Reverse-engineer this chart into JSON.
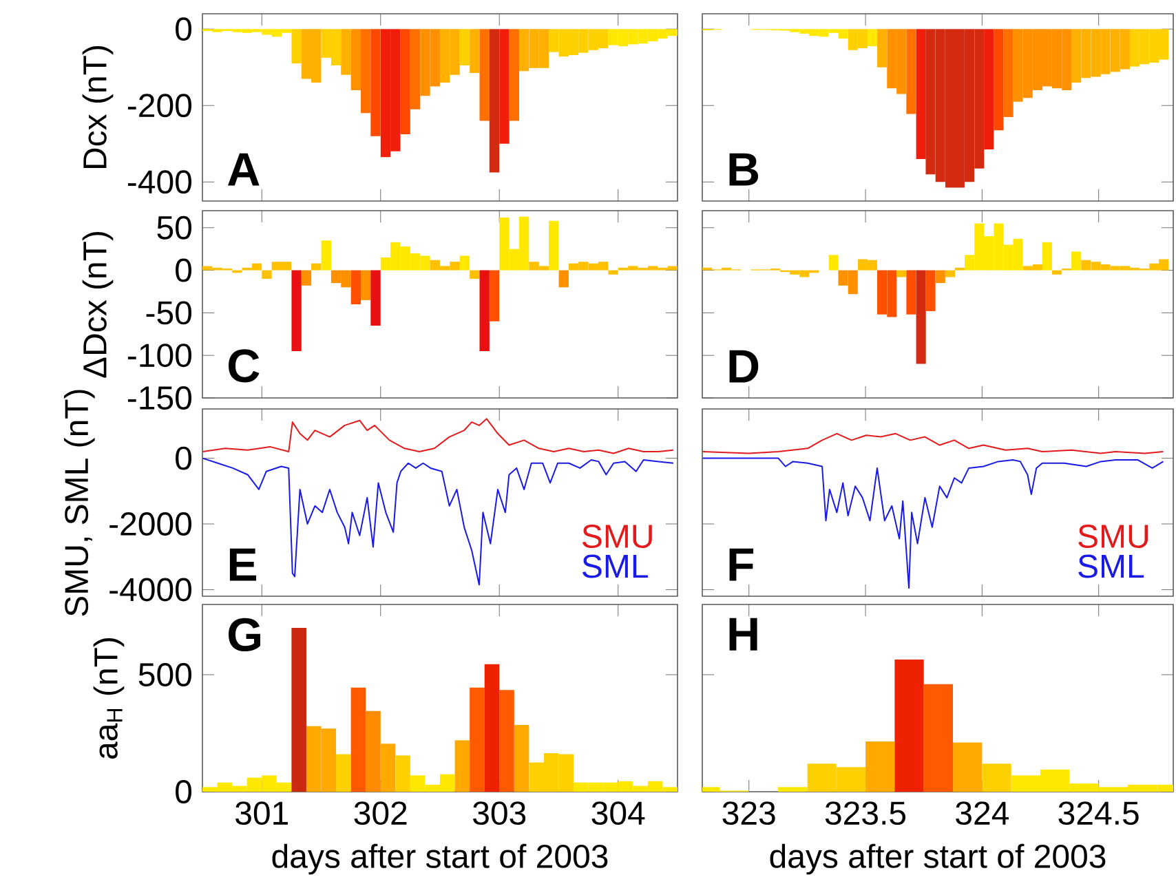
{
  "chart_data": [
    {
      "type": "bar",
      "ylabel": "Dcx (nT)",
      "annotations": [
        "A"
      ],
      "xlim": [
        300.5,
        304.5
      ],
      "ylim": [
        -450,
        40
      ],
      "xticks": [
        301,
        302,
        303,
        304
      ],
      "yticks": [
        -400,
        -200,
        0
      ],
      "tick_labels": "y",
      "x": [
        300.542,
        300.625,
        300.708,
        300.792,
        300.875,
        300.958,
        301.042,
        301.125,
        301.208,
        301.292,
        301.375,
        301.458,
        301.542,
        301.625,
        301.708,
        301.792,
        301.875,
        301.958,
        302.042,
        302.125,
        302.208,
        302.292,
        302.375,
        302.458,
        302.542,
        302.625,
        302.708,
        302.792,
        302.875,
        302.958,
        303.042,
        303.125,
        303.208,
        303.292,
        303.375,
        303.458,
        303.542,
        303.625,
        303.708,
        303.792,
        303.875,
        303.958,
        304.042,
        304.125,
        304.208,
        304.292,
        304.375,
        304.458
      ],
      "values": [
        -5,
        -8,
        -5,
        -8,
        -10,
        -8,
        -15,
        -20,
        -10,
        -90,
        -130,
        -140,
        -75,
        -95,
        -120,
        -160,
        -220,
        -280,
        -335,
        -320,
        -275,
        -210,
        -175,
        -150,
        -140,
        -120,
        -95,
        -115,
        -240,
        -375,
        -300,
        -240,
        -110,
        -102,
        -102,
        -60,
        -72,
        -68,
        -62,
        -55,
        -50,
        -42,
        -45,
        -40,
        -38,
        -32,
        -25,
        -18
      ],
      "colors": [
        "#ffe800",
        "#ffe800",
        "#ffe800",
        "#ffe800",
        "#ffe800",
        "#ffe800",
        "#ffe800",
        "#ffe800",
        "#ffe800",
        "#ffd000",
        "#ffb000",
        "#ffb000",
        "#ffd000",
        "#ffd000",
        "#ffb000",
        "#ff9000",
        "#ff7000",
        "#ff4800",
        "#f01e0a",
        "#f01e0a",
        "#ff4800",
        "#ff7000",
        "#ff9000",
        "#ff9000",
        "#ffb000",
        "#ffb000",
        "#ffd000",
        "#ffb000",
        "#ff7000",
        "#d42a10",
        "#f01e0a",
        "#ff7000",
        "#ffb000",
        "#ffb000",
        "#ffb000",
        "#ffd000",
        "#ffd000",
        "#ffd000",
        "#ffd000",
        "#ffd000",
        "#ffd000",
        "#ffe800",
        "#ffe800",
        "#ffe800",
        "#ffe800",
        "#ffe800",
        "#ffe800",
        "#ffe800"
      ]
    },
    {
      "type": "bar",
      "annotations": [
        "B"
      ],
      "xlim": [
        322.8,
        324.82
      ],
      "ylim": [
        -450,
        40
      ],
      "xticks": [
        323,
        323.5,
        324,
        324.5
      ],
      "yticks": [
        -400,
        -200,
        0
      ],
      "tick_labels": false,
      "x": [
        322.821,
        322.863,
        322.904,
        322.946,
        322.988,
        323.029,
        323.071,
        323.113,
        323.154,
        323.196,
        323.238,
        323.279,
        323.321,
        323.363,
        323.404,
        323.446,
        323.488,
        323.529,
        323.571,
        323.613,
        323.654,
        323.696,
        323.738,
        323.779,
        323.821,
        323.863,
        323.904,
        323.946,
        323.988,
        324.029,
        324.071,
        324.113,
        324.154,
        324.196,
        324.238,
        324.279,
        324.321,
        324.363,
        324.404,
        324.446,
        324.488,
        324.529,
        324.571,
        324.613,
        324.654,
        324.696,
        324.738,
        324.779
      ],
      "values": [
        -3,
        -2,
        0,
        0,
        0,
        -2,
        -2,
        -3,
        -4,
        -8,
        -12,
        -18,
        -20,
        -10,
        -25,
        -55,
        -50,
        -45,
        -100,
        -155,
        -170,
        -222,
        -340,
        -380,
        -400,
        -415,
        -415,
        -400,
        -365,
        -315,
        -265,
        -230,
        -190,
        -180,
        -160,
        -150,
        -155,
        -160,
        -140,
        -128,
        -125,
        -118,
        -112,
        -105,
        -98,
        -92,
        -88,
        -80
      ],
      "colors": [
        "#ffe800",
        "#ffe800",
        "#ffe800",
        "#ffe800",
        "#ffe800",
        "#ffe800",
        "#ffe800",
        "#ffe800",
        "#ffe800",
        "#ffe800",
        "#ffe800",
        "#ffe800",
        "#ffe800",
        "#ffe800",
        "#ffe800",
        "#ffd000",
        "#ffd000",
        "#ffe800",
        "#ffb000",
        "#ff9000",
        "#ff9000",
        "#ff7000",
        "#f01e0a",
        "#d42a10",
        "#d42a10",
        "#d42a10",
        "#d42a10",
        "#d42a10",
        "#d42a10",
        "#f01e0a",
        "#ff4800",
        "#ff7000",
        "#ff9000",
        "#ff9000",
        "#ff9000",
        "#ff9000",
        "#ff9000",
        "#ff9000",
        "#ffb000",
        "#ffb000",
        "#ffb000",
        "#ffb000",
        "#ffb000",
        "#ffb000",
        "#ffd000",
        "#ffd000",
        "#ffd000",
        "#ffd000"
      ]
    },
    {
      "type": "bar",
      "ylabel": "ΔDcx (nT)",
      "annotations": [
        "C"
      ],
      "xlim": [
        300.5,
        304.5
      ],
      "ylim": [
        -150,
        70
      ],
      "xticks": [
        301,
        302,
        303,
        304
      ],
      "yticks": [
        -150,
        -100,
        -50,
        0,
        50
      ],
      "tick_labels": "y",
      "x": [
        300.542,
        300.625,
        300.708,
        300.792,
        300.875,
        300.958,
        301.042,
        301.125,
        301.208,
        301.292,
        301.375,
        301.458,
        301.542,
        301.625,
        301.708,
        301.792,
        301.875,
        301.958,
        302.042,
        302.125,
        302.208,
        302.292,
        302.375,
        302.458,
        302.542,
        302.625,
        302.708,
        302.792,
        302.875,
        302.958,
        303.042,
        303.125,
        303.208,
        303.292,
        303.375,
        303.458,
        303.542,
        303.625,
        303.708,
        303.792,
        303.875,
        303.958,
        304.042,
        304.125,
        304.208,
        304.292,
        304.375,
        304.458
      ],
      "values": [
        5,
        3,
        2,
        -3,
        3,
        8,
        -10,
        10,
        10,
        -95,
        -18,
        8,
        35,
        -15,
        -20,
        -40,
        -35,
        -65,
        15,
        33,
        28,
        20,
        17,
        12,
        5,
        10,
        17,
        -10,
        -95,
        -60,
        62,
        25,
        63,
        10,
        5,
        58,
        -20,
        8,
        10,
        8,
        10,
        -5,
        3,
        5,
        3,
        5,
        3,
        5
      ],
      "colors": [
        "#ffc000",
        "#ffc000",
        "#ffc000",
        "#ffc000",
        "#ffc000",
        "#ffc000",
        "#ffc000",
        "#ffc000",
        "#ffc000",
        "#e81010",
        "#ff9000",
        "#ffc000",
        "#ffe800",
        "#ff9000",
        "#ff9000",
        "#ff5000",
        "#ff9000",
        "#e81010",
        "#ffe800",
        "#ffe800",
        "#ffe800",
        "#ffe800",
        "#ffe800",
        "#ffc000",
        "#ffc000",
        "#ffc000",
        "#ffe800",
        "#ffc000",
        "#e81010",
        "#ff5000",
        "#ffe800",
        "#ffe800",
        "#ffe800",
        "#ffc000",
        "#ffc000",
        "#ffe800",
        "#ff9000",
        "#ffc000",
        "#ffc000",
        "#ffc000",
        "#ffc000",
        "#ffc000",
        "#ffc000",
        "#ffc000",
        "#ffc000",
        "#ffc000",
        "#ffc000",
        "#ffc000"
      ]
    },
    {
      "type": "bar",
      "annotations": [
        "D"
      ],
      "xlim": [
        322.8,
        324.82
      ],
      "ylim": [
        -150,
        70
      ],
      "xticks": [
        323,
        323.5,
        324,
        324.5
      ],
      "yticks": [
        -150,
        -100,
        -50,
        0,
        50
      ],
      "tick_labels": false,
      "x": [
        322.821,
        322.863,
        322.904,
        322.946,
        322.988,
        323.029,
        323.071,
        323.113,
        323.154,
        323.196,
        323.238,
        323.279,
        323.321,
        323.363,
        323.404,
        323.446,
        323.488,
        323.529,
        323.571,
        323.613,
        323.654,
        323.696,
        323.738,
        323.779,
        323.821,
        323.863,
        323.904,
        323.946,
        323.988,
        324.029,
        324.071,
        324.113,
        324.154,
        324.196,
        324.238,
        324.279,
        324.321,
        324.363,
        324.404,
        324.446,
        324.488,
        324.529,
        324.571,
        324.613,
        324.654,
        324.696,
        324.738,
        324.779
      ],
      "values": [
        3,
        1,
        3,
        1,
        0,
        1,
        1,
        2,
        -2,
        -5,
        -8,
        -3,
        0,
        18,
        -18,
        -28,
        13,
        12,
        -52,
        -55,
        -8,
        -52,
        -110,
        -48,
        -15,
        -8,
        3,
        18,
        55,
        40,
        55,
        30,
        37,
        5,
        7,
        33,
        -5,
        2,
        22,
        12,
        10,
        7,
        5,
        5,
        3,
        2,
        8,
        13
      ],
      "colors": [
        "#ffc000",
        "#ffc000",
        "#ffc000",
        "#ffc000",
        "#ffc000",
        "#ffc000",
        "#ffc000",
        "#ffc000",
        "#ffc000",
        "#ffc000",
        "#ffc000",
        "#ffc000",
        "#ffc000",
        "#ffe800",
        "#ff9000",
        "#ff9000",
        "#ffc000",
        "#ffc000",
        "#ff5000",
        "#ff5000",
        "#ffc000",
        "#ff5000",
        "#d42a10",
        "#ff5000",
        "#ff9000",
        "#ffc000",
        "#ffc000",
        "#ffe800",
        "#ffe800",
        "#ffe800",
        "#ffe800",
        "#ffe800",
        "#ffe800",
        "#ffc000",
        "#ffc000",
        "#ffe800",
        "#ffc000",
        "#ffc000",
        "#ffe800",
        "#ffc000",
        "#ffc000",
        "#ffc000",
        "#ffc000",
        "#ffc000",
        "#ffc000",
        "#ffc000",
        "#ffc000",
        "#ffc000"
      ]
    },
    {
      "type": "line",
      "ylabel": "SMU, SML (nT)",
      "annotations": [
        "E"
      ],
      "xlim": [
        300.5,
        304.5
      ],
      "ylim": [
        -4200,
        1500
      ],
      "xticks": [
        301,
        302,
        303,
        304
      ],
      "yticks": [
        -4000,
        -2000,
        0
      ],
      "tick_labels": "y",
      "legend": "bottom right",
      "series": [
        {
          "name": "SMU",
          "color": "#e31a1c",
          "x": [
            300.503,
            300.692,
            300.881,
            301.069,
            301.226,
            301.258,
            301.321,
            301.384,
            301.447,
            301.572,
            301.698,
            301.824,
            301.887,
            301.95,
            302.075,
            302.201,
            302.327,
            302.453,
            302.579,
            302.704,
            302.767,
            302.83,
            302.893,
            302.987,
            303.082,
            303.208,
            303.333,
            303.459,
            303.585,
            303.711,
            303.836,
            303.962,
            304.088,
            304.214,
            304.34,
            304.465
          ],
          "values": [
            200,
            300,
            250,
            350,
            200,
            1100,
            750,
            550,
            850,
            650,
            1000,
            1150,
            850,
            1000,
            550,
            300,
            200,
            300,
            650,
            850,
            1100,
            1000,
            1200,
            750,
            400,
            550,
            300,
            200,
            300,
            200,
            250,
            150,
            300,
            200,
            200,
            250
          ]
        },
        {
          "name": "SML",
          "color": "#1a1ae6",
          "x": [
            300.503,
            300.629,
            300.755,
            300.881,
            300.975,
            301.038,
            301.164,
            301.226,
            301.258,
            301.277,
            301.321,
            301.384,
            301.447,
            301.509,
            301.572,
            301.635,
            301.698,
            301.73,
            301.761,
            301.824,
            301.887,
            301.937,
            301.981,
            302.044,
            302.107,
            302.138,
            302.17,
            302.233,
            302.296,
            302.358,
            302.421,
            302.516,
            302.579,
            302.642,
            302.704,
            302.767,
            302.83,
            302.862,
            302.925,
            302.987,
            303.05,
            303.082,
            303.145,
            303.208,
            303.27,
            303.365,
            303.428,
            303.491,
            303.585,
            303.679,
            303.774,
            303.836,
            303.899,
            303.962,
            304.057,
            304.151,
            304.214,
            304.34,
            304.465
          ],
          "values": [
            0,
            -150,
            -300,
            -500,
            -950,
            -400,
            -250,
            -300,
            -3500,
            -3600,
            -950,
            -2000,
            -1450,
            -1650,
            -950,
            -1650,
            -2100,
            -2600,
            -1650,
            -2350,
            -1200,
            -2700,
            -750,
            -1650,
            -2250,
            -750,
            -400,
            -150,
            -300,
            -150,
            -300,
            -400,
            -1450,
            -950,
            -2100,
            -2800,
            -3850,
            -1650,
            -2600,
            -950,
            -1650,
            -500,
            -300,
            -950,
            -150,
            -150,
            -750,
            -150,
            -150,
            -300,
            -50,
            -100,
            -500,
            -150,
            -100,
            -400,
            -50,
            -100,
            -150
          ]
        }
      ]
    },
    {
      "type": "line",
      "annotations": [
        "F"
      ],
      "xlim": [
        322.8,
        324.82
      ],
      "ylim": [
        -4200,
        1500
      ],
      "xticks": [
        323,
        323.5,
        324,
        324.5
      ],
      "yticks": [
        -4000,
        -2000,
        0
      ],
      "tick_labels": false,
      "legend": "bottom right",
      "series": [
        {
          "name": "SMU",
          "color": "#e31a1c",
          "x": [
            322.802,
            323,
            323.126,
            323.252,
            323.314,
            323.377,
            323.44,
            323.503,
            323.566,
            323.629,
            323.692,
            323.755,
            323.818,
            323.881,
            323.943,
            324.006,
            324.101,
            324.195,
            324.258,
            324.384,
            324.509,
            324.572,
            324.698,
            324.777
          ],
          "values": [
            200,
            150,
            200,
            300,
            550,
            750,
            550,
            700,
            650,
            750,
            550,
            650,
            400,
            550,
            300,
            400,
            250,
            300,
            200,
            250,
            150,
            200,
            150,
            200
          ]
        },
        {
          "name": "SML",
          "color": "#1a1ae6",
          "x": [
            322.802,
            323,
            323.126,
            323.157,
            323.189,
            323.252,
            323.314,
            323.33,
            323.346,
            323.377,
            323.403,
            323.425,
            323.456,
            323.487,
            323.519,
            323.55,
            323.582,
            323.613,
            323.645,
            323.66,
            323.686,
            323.698,
            323.723,
            323.755,
            323.786,
            323.818,
            323.849,
            323.881,
            323.912,
            323.943,
            324.006,
            324.069,
            324.132,
            324.164,
            324.195,
            324.211,
            324.233,
            324.258,
            324.352,
            324.447,
            324.509,
            324.572,
            324.667,
            324.73,
            324.777
          ],
          "values": [
            0,
            0,
            0,
            -250,
            -100,
            -150,
            -250,
            -1900,
            -950,
            -1650,
            -750,
            -1750,
            -850,
            -1200,
            -1900,
            -300,
            -1900,
            -1450,
            -2450,
            -1300,
            -3950,
            -1650,
            -2600,
            -1200,
            -2100,
            -850,
            -1200,
            -600,
            -750,
            -300,
            -250,
            -100,
            -50,
            -100,
            -500,
            -1100,
            -300,
            -150,
            -150,
            -250,
            -100,
            -50,
            -50,
            -300,
            -100
          ]
        }
      ]
    },
    {
      "type": "bar",
      "ylabel": "aa$_{H}$ (nT)",
      "xlabel": "days after start of 2003",
      "annotations": [
        "G"
      ],
      "xlim": [
        300.5,
        304.5
      ],
      "ylim": [
        0,
        800
      ],
      "xticks": [
        301,
        302,
        303,
        304
      ],
      "yticks": [
        0,
        500
      ],
      "x": [
        300.5625,
        300.6875,
        300.8125,
        300.9375,
        301.0625,
        301.1875,
        301.3125,
        301.4375,
        301.5625,
        301.6875,
        301.8125,
        301.9375,
        302.0625,
        302.1875,
        302.3125,
        302.4375,
        302.5625,
        302.6875,
        302.8125,
        302.9375,
        303.0625,
        303.1875,
        303.3125,
        303.4375,
        303.5625,
        303.6875,
        303.8125,
        303.9375,
        304.0625,
        304.1875,
        304.3125,
        304.4375
      ],
      "values": [
        20,
        40,
        25,
        60,
        70,
        40,
        700,
        280,
        270,
        160,
        445,
        345,
        205,
        155,
        70,
        30,
        75,
        220,
        445,
        545,
        435,
        285,
        125,
        165,
        160,
        40,
        40,
        40,
        45,
        25,
        45,
        20
      ],
      "colors": [
        "#ffe800",
        "#ffe800",
        "#ffe800",
        "#ffe800",
        "#ffe800",
        "#ffe800",
        "#cc2a10",
        "#ffa800",
        "#ffa800",
        "#ffd000",
        "#ff5a00",
        "#ff8c00",
        "#ffa800",
        "#ffd000",
        "#ffe800",
        "#ffe800",
        "#ffe800",
        "#ffa800",
        "#ff5a00",
        "#ee2200",
        "#ff5a00",
        "#ffa800",
        "#ffd000",
        "#ffd000",
        "#ffd000",
        "#ffe800",
        "#ffe800",
        "#ffe800",
        "#ffe800",
        "#ffe800",
        "#ffe800",
        "#ffe800"
      ]
    },
    {
      "type": "bar",
      "xlabel": "days after start of 2003",
      "annotations": [
        "H"
      ],
      "xlim": [
        322.8,
        324.82
      ],
      "ylim": [
        0,
        800
      ],
      "xticks": [
        323,
        323.5,
        324,
        324.5
      ],
      "yticks": [
        0,
        500
      ],
      "tick_labels": "x",
      "x": [
        322.8125,
        322.9375,
        323.0625,
        323.1875,
        323.3125,
        323.4375,
        323.5625,
        323.6875,
        323.8125,
        323.9375,
        324.0625,
        324.1875,
        324.3125,
        324.4375,
        324.5625,
        324.6875,
        324.8125
      ],
      "values": [
        20,
        5,
        0,
        20,
        120,
        105,
        215,
        565,
        460,
        210,
        120,
        70,
        95,
        35,
        20,
        30,
        30
      ],
      "colors": [
        "#ffe800",
        "#ffe800",
        "#ffe800",
        "#ffe800",
        "#ffd000",
        "#ffd000",
        "#ffa800",
        "#ee2200",
        "#ff5a00",
        "#ffa800",
        "#ffd000",
        "#ffe800",
        "#ffe800",
        "#ffe800",
        "#ffe800",
        "#ffe800",
        "#ffe800"
      ]
    }
  ]
}
